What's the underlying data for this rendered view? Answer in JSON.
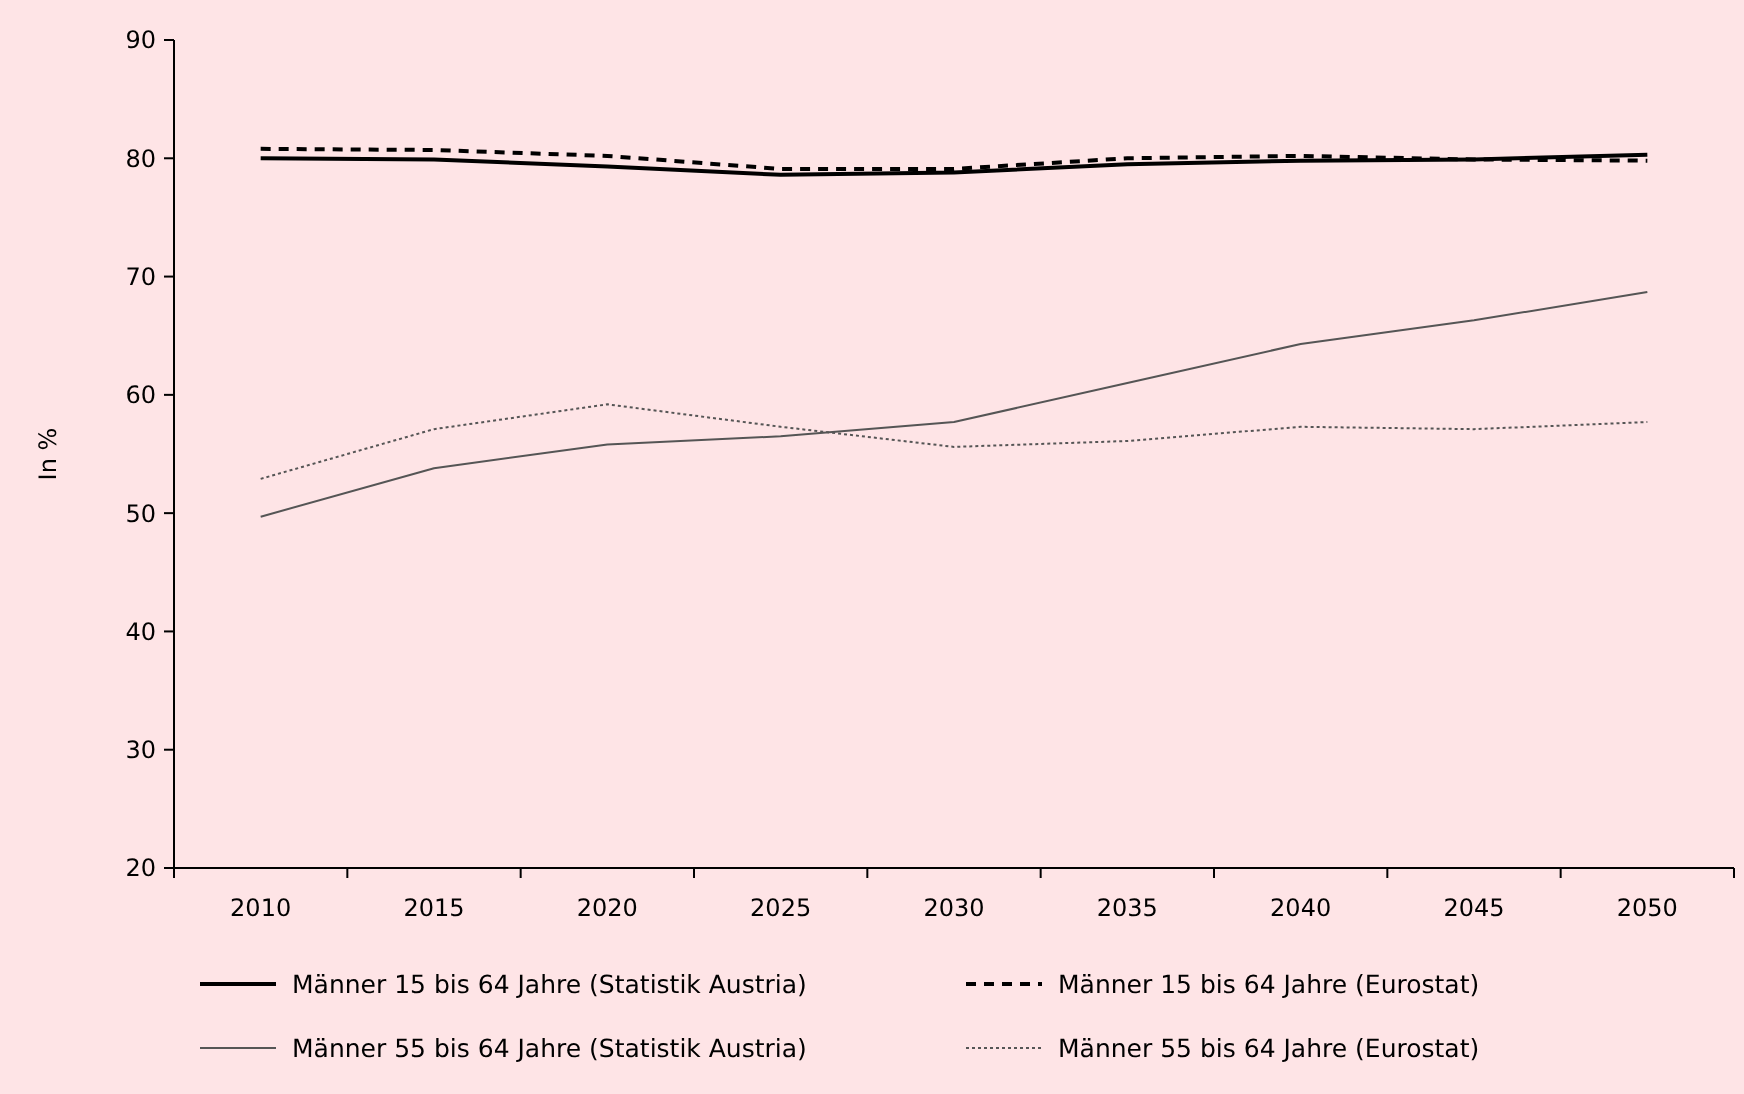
{
  "chart_data": {
    "type": "line",
    "ylabel": "In %",
    "categories": [
      "2010",
      "2015",
      "2020",
      "2025",
      "2030",
      "2035",
      "2040",
      "2045",
      "2050"
    ],
    "series": [
      {
        "name": "Männer 15 bis 64 Jahre (Statistik Austria)",
        "color": "#000000",
        "line_style": "solid",
        "values": [
          80.0,
          79.9,
          79.3,
          78.6,
          78.8,
          79.5,
          79.8,
          79.9,
          80.3
        ]
      },
      {
        "name": "Männer 15 bis 64 Jahre (Eurostat)",
        "color": "#000000",
        "line_style": "dashed",
        "values": [
          80.8,
          80.7,
          80.2,
          79.1,
          79.1,
          80.0,
          80.2,
          79.9,
          79.8
        ]
      },
      {
        "name": "Männer 55 bis 64 Jahre (Statistik Austria)",
        "color": "#555555",
        "line_style": "solid",
        "values": [
          49.7,
          53.8,
          55.8,
          56.5,
          57.7,
          61.0,
          64.3,
          66.3,
          68.7
        ]
      },
      {
        "name": "Männer 55 bis 64 Jahre (Eurostat)",
        "color": "#555555",
        "line_style": "dotted",
        "values": [
          52.9,
          57.1,
          59.2,
          57.3,
          55.6,
          56.1,
          57.3,
          57.1,
          57.7
        ]
      }
    ],
    "ylim": [
      20,
      90
    ],
    "yticks": [
      20,
      30,
      40,
      50,
      60,
      70,
      80,
      90
    ],
    "grid": false,
    "legend": "bottom",
    "marker": "none"
  }
}
